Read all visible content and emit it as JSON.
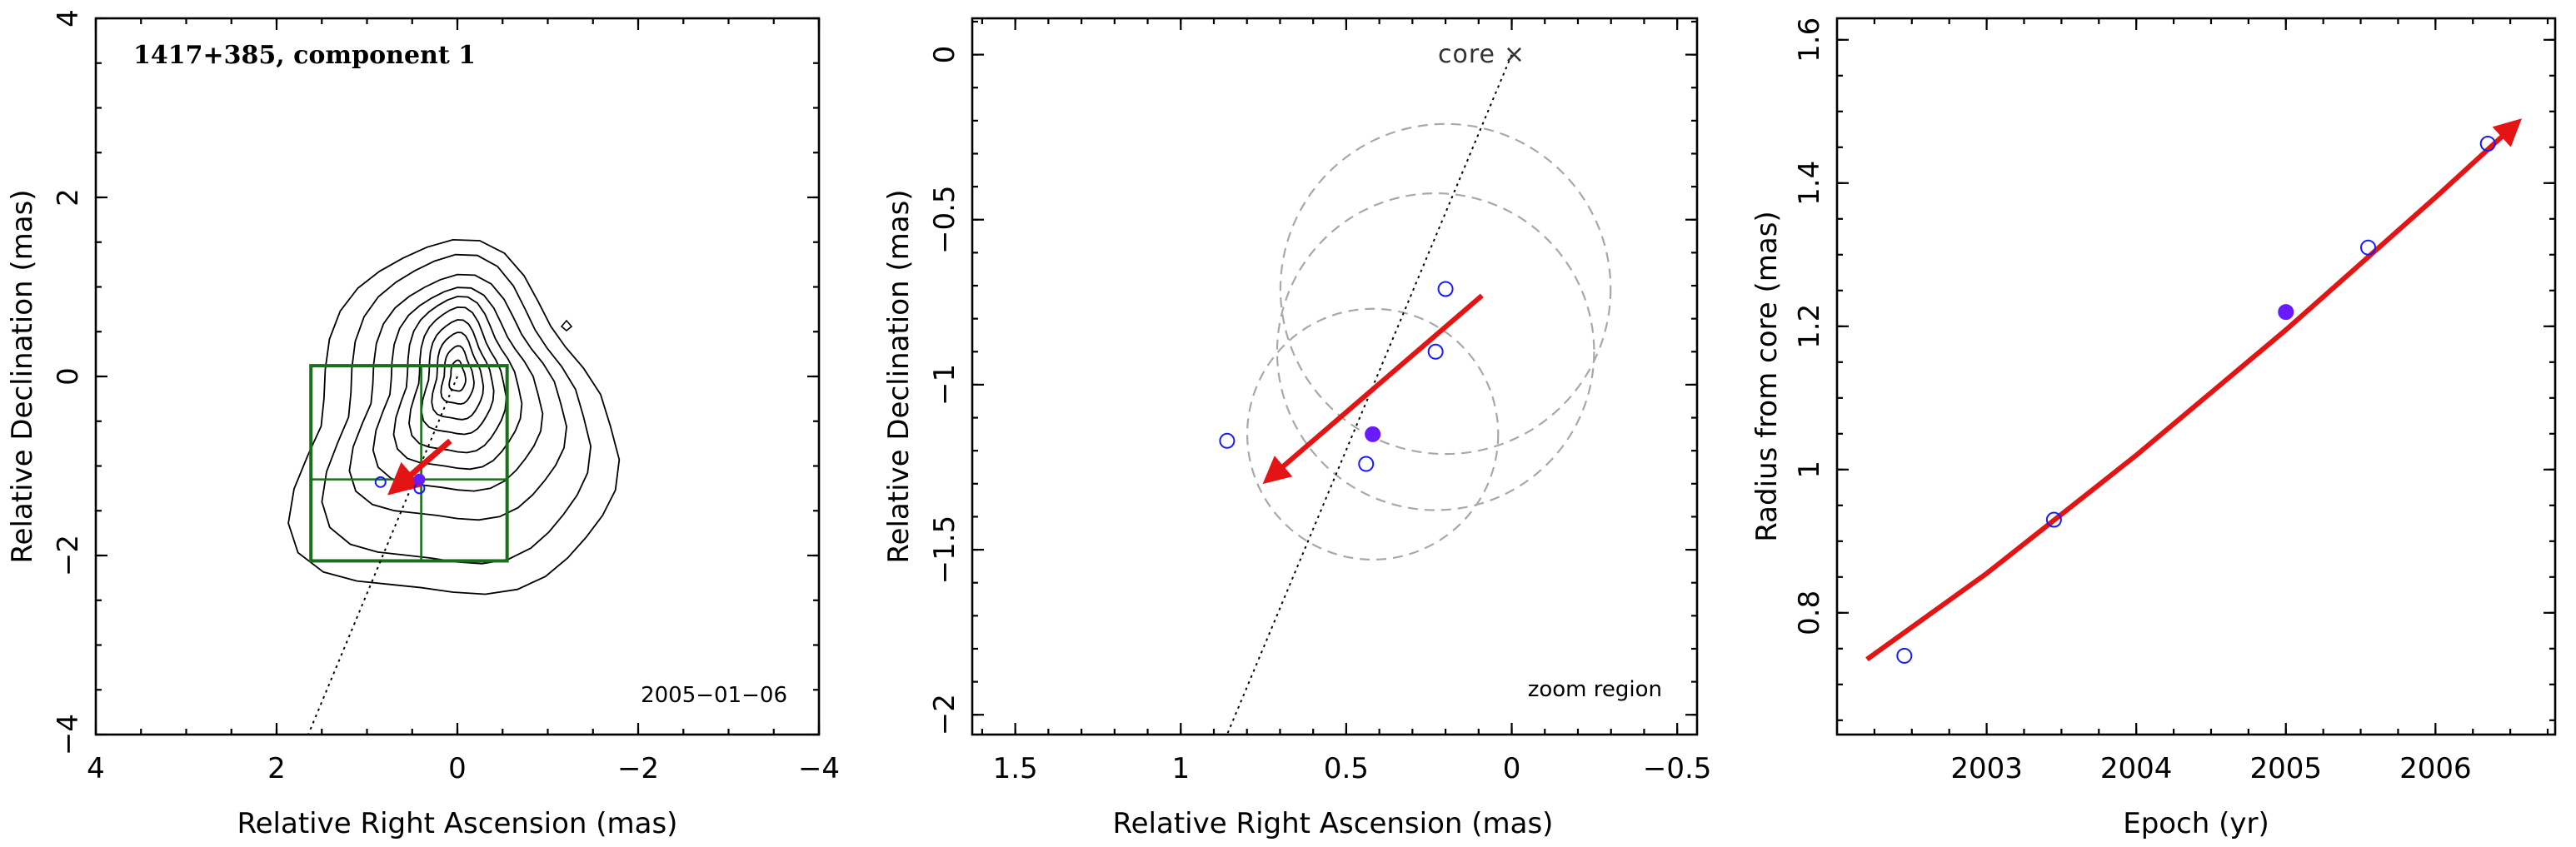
{
  "chart_data": [
    {
      "type": "scatter",
      "panel": "left",
      "title": "1417+385, component 1",
      "annotation": "2005−01−06",
      "xlabel": "Relative Right Ascension (mas)",
      "ylabel": "Relative Declination (mas)",
      "xlim": [
        4,
        -4
      ],
      "ylim": [
        -4,
        4
      ],
      "xticks": [
        4,
        2,
        0,
        -2,
        -4
      ],
      "yticks": [
        -4,
        -2,
        0,
        2,
        4
      ],
      "xtick_labels": [
        "4",
        "2",
        "0",
        "−2",
        "−4"
      ],
      "ytick_labels": [
        "−4",
        "−2",
        "0",
        "2",
        "4"
      ],
      "contours": {
        "center": [
          0,
          0
        ],
        "levels": 10
      },
      "points": {
        "open": [
          [
            0.85,
            -1.18
          ],
          [
            0.42,
            -1.25
          ]
        ],
        "filled": [
          [
            0.42,
            -1.15
          ]
        ]
      },
      "track_line": {
        "from": [
          0,
          0
        ],
        "to": [
          1.65,
          -4.0
        ]
      },
      "motion_arrow": {
        "from": [
          0.08,
          -0.72
        ],
        "to": [
          0.72,
          -1.28
        ]
      },
      "zoom_box": {
        "ra_range": [
          1.62,
          -0.55
        ],
        "dec_range": [
          -2.06,
          0.12
        ],
        "divider_ra": 0.4,
        "divider_dec": -1.15
      }
    },
    {
      "type": "scatter",
      "panel": "middle",
      "xlabel": "Relative Right Ascension (mas)",
      "ylabel": "Relative Declination (mas)",
      "xlim": [
        1.63,
        -0.56
      ],
      "ylim": [
        -2.06,
        0.11
      ],
      "xticks": [
        1.5,
        1,
        0.5,
        0,
        -0.5
      ],
      "yticks": [
        -2,
        -1.5,
        -1,
        -0.5,
        0
      ],
      "xtick_labels": [
        "1.5",
        "1",
        "0.5",
        "0",
        "−0.5"
      ],
      "ytick_labels": [
        "−2",
        "−1.5",
        "−1",
        "−0.5",
        "0"
      ],
      "core_label": "core",
      "zoom_label": "zoom region",
      "points": {
        "open": [
          [
            0.86,
            -1.17
          ],
          [
            0.44,
            -1.24
          ],
          [
            0.23,
            -0.9
          ],
          [
            0.2,
            -0.71
          ]
        ],
        "filled": [
          [
            0.42,
            -1.15
          ]
        ]
      },
      "error_circles": [
        {
          "center": [
            0.42,
            -1.15
          ],
          "r": 0.38
        },
        {
          "center": [
            0.23,
            -0.9
          ],
          "r": 0.48
        },
        {
          "center": [
            0.2,
            -0.71
          ],
          "r": 0.5
        }
      ],
      "track_line": {
        "from": [
          0,
          0
        ],
        "to": [
          0.86,
          -2.06
        ]
      },
      "motion_arrow": {
        "from": [
          0.09,
          -0.73
        ],
        "to": [
          0.74,
          -1.29
        ]
      }
    },
    {
      "type": "line",
      "panel": "right",
      "xlabel": "Epoch (yr)",
      "ylabel": "Radius from core (mas)",
      "xlim": [
        2002.0,
        2006.8
      ],
      "ylim": [
        0.63,
        1.63
      ],
      "xticks": [
        2003,
        2004,
        2005,
        2006
      ],
      "yticks": [
        0.8,
        1,
        1.2,
        1.4,
        1.6
      ],
      "xtick_labels": [
        "2003",
        "2004",
        "2005",
        "2006"
      ],
      "ytick_labels": [
        "0.8",
        "1",
        "1.2",
        "1.4",
        "1.6"
      ],
      "points": {
        "open": [
          [
            2002.45,
            0.74
          ],
          [
            2003.45,
            0.93
          ],
          [
            2005.55,
            1.31
          ],
          [
            2006.35,
            1.455
          ]
        ],
        "filled": [
          [
            2005.0,
            1.22
          ]
        ]
      },
      "fit_curve": [
        [
          2002.2,
          0.735
        ],
        [
          2003.0,
          0.855
        ],
        [
          2004.0,
          1.02
        ],
        [
          2005.0,
          1.195
        ],
        [
          2006.0,
          1.38
        ],
        [
          2006.55,
          1.485
        ]
      ]
    }
  ],
  "colors": {
    "axis": "#000000",
    "fit": "#e51414",
    "points": "#1a1aff",
    "filled": "#6a1aff",
    "box": "#1b6e1b",
    "circles": "#a8a8a8"
  }
}
